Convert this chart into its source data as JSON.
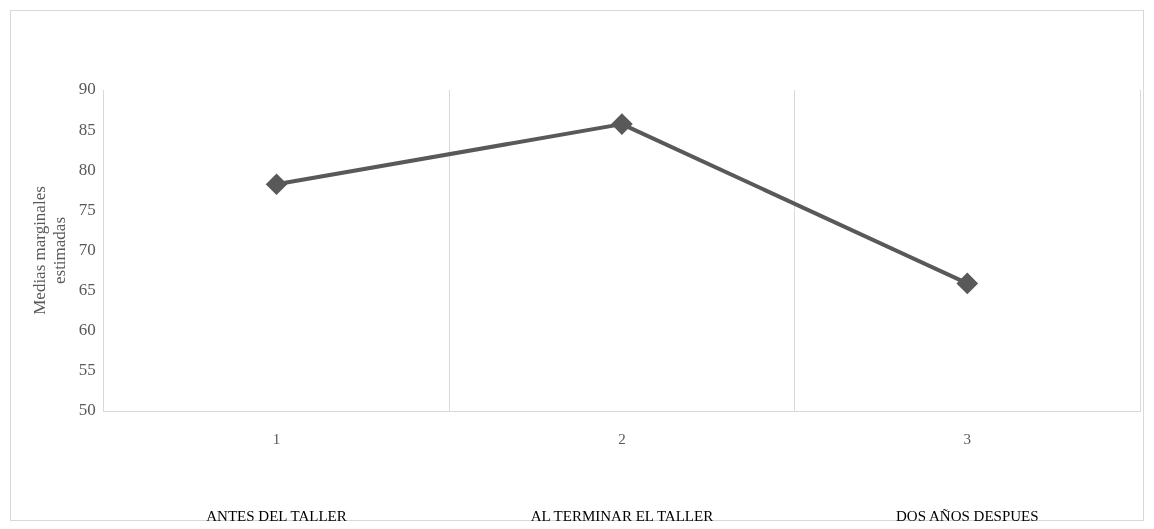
{
  "chart_data": {
    "type": "line",
    "ylabel": "Medias marginales estimadas",
    "categories": [
      "1",
      "2",
      "3"
    ],
    "values": [
      78.25,
      85.75,
      65.9
    ],
    "color": "#595959",
    "ylim": [
      50,
      90
    ],
    "yticks": [
      50,
      55,
      60,
      65,
      70,
      75,
      80,
      85,
      90
    ],
    "grid": "x",
    "marker": "diamond",
    "line_style": "solid",
    "annotations": [
      "ANTES DEL TALLER",
      "AL TERMINAR EL TALLER",
      "DOS AÑOS DESPUES"
    ]
  }
}
